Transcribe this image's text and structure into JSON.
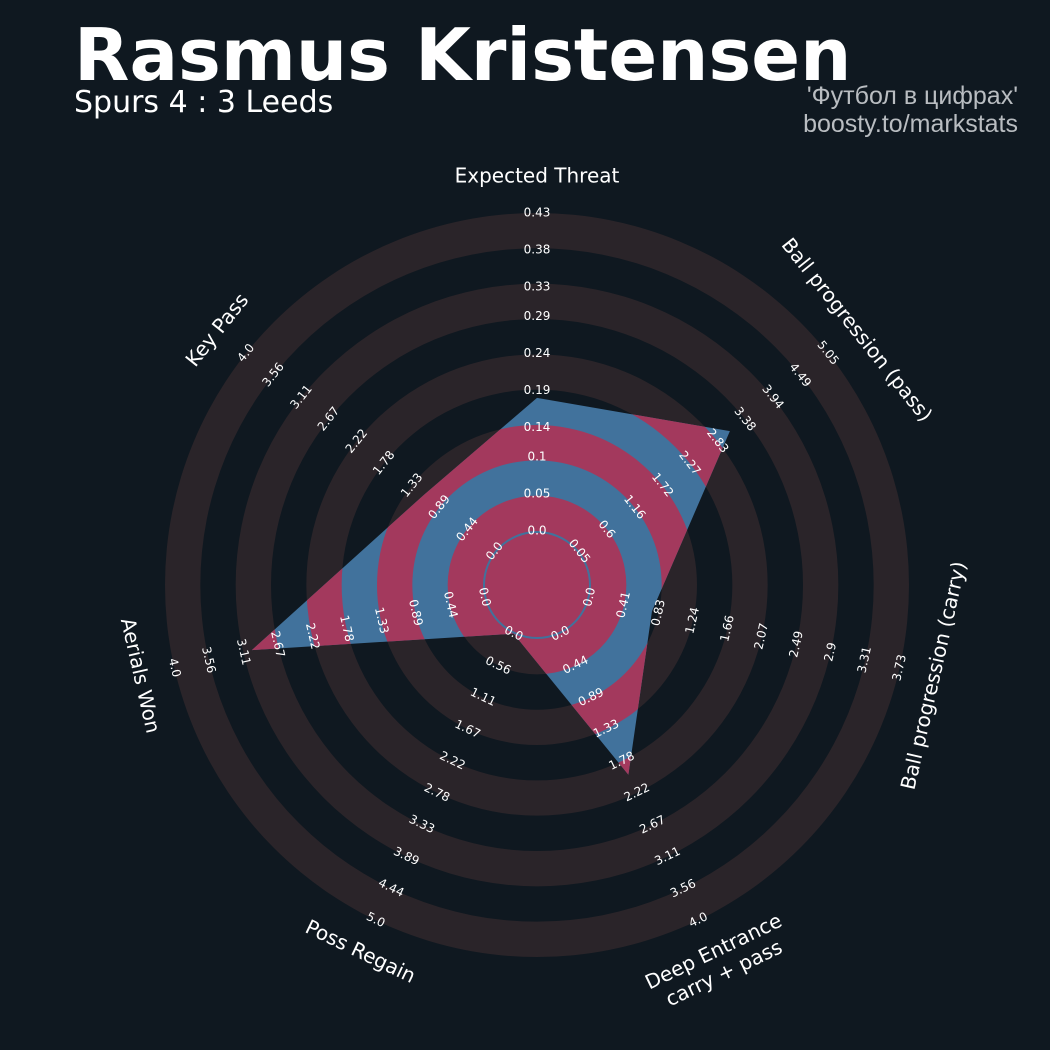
{
  "chart_data": {
    "type": "radar",
    "title": "Rasmus Kristensen",
    "subtitle": "Spurs 4 : 3 Leeds",
    "annotations": [
      "'Футбол в цифрах'",
      "boosty.to/markstats"
    ],
    "categories": [
      [
        "Expected Threat"
      ],
      [
        "Ball progression (pass)"
      ],
      [
        "Ball progression (carry)"
      ],
      [
        "Deep Entrance",
        "carry + pass"
      ],
      [
        "Poss Regain"
      ],
      [
        "Aerials Won"
      ],
      [
        "Key Pass"
      ]
    ],
    "values": [
      0.18,
      3.08,
      0.75,
      1.97,
      0.0,
      3.0,
      1.14
    ],
    "color": "#41729c",
    "ring_color": "#2a2429",
    "ring_fill_color": "#a3395d",
    "axes": [
      {
        "lim": [
          0,
          0.43
        ],
        "ticks": [
          {
            "value": 0,
            "label": "0.0"
          },
          0.05,
          0.1,
          0.14,
          0.19,
          0.24,
          0.29,
          0.33,
          0.38,
          0.43
        ]
      },
      {
        "lim": [
          0.05,
          5.05
        ],
        "ticks": [
          0.05,
          0.6,
          1.16,
          1.72,
          2.27,
          2.83,
          3.38,
          3.94,
          4.49,
          5.05
        ]
      },
      {
        "lim": [
          0,
          3.73
        ],
        "ticks": [
          {
            "value": 0,
            "label": "0.0"
          },
          0.41,
          0.83,
          1.24,
          1.66,
          2.07,
          2.49,
          2.9,
          3.31,
          3.73
        ]
      },
      {
        "lim": [
          0,
          4
        ],
        "ticks": [
          {
            "value": 0,
            "label": "0.0"
          },
          0.44,
          0.89,
          1.33,
          1.78,
          2.22,
          2.67,
          3.11,
          3.56,
          {
            "value": 4,
            "label": "4.0"
          }
        ]
      },
      {
        "lim": [
          0,
          5
        ],
        "ticks": [
          {
            "value": 0,
            "label": "0.0"
          },
          0.56,
          1.11,
          1.67,
          2.22,
          2.78,
          3.33,
          3.89,
          4.44,
          {
            "value": 5,
            "label": "5.0"
          }
        ]
      },
      {
        "lim": [
          0,
          4
        ],
        "ticks": [
          {
            "value": 0,
            "label": "0.0"
          },
          0.44,
          0.89,
          1.33,
          1.78,
          2.22,
          2.67,
          3.11,
          3.56,
          {
            "value": 4,
            "label": "4.0"
          }
        ]
      },
      {
        "lim": [
          0,
          4
        ],
        "ticks": [
          {
            "value": 0,
            "label": "0.0"
          },
          0.44,
          0.89,
          1.33,
          1.78,
          2.22,
          2.67,
          3.11,
          3.56,
          {
            "value": 4,
            "label": "4.0"
          }
        ]
      }
    ]
  }
}
